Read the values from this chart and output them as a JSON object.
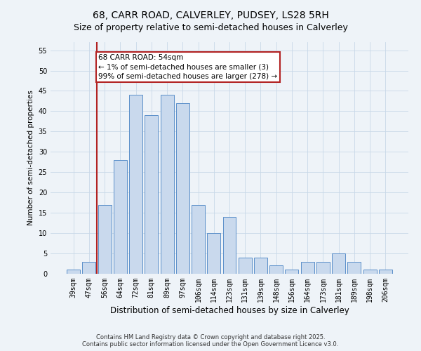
{
  "title": "68, CARR ROAD, CALVERLEY, PUDSEY, LS28 5RH",
  "subtitle": "Size of property relative to semi-detached houses in Calverley",
  "xlabel": "Distribution of semi-detached houses by size in Calverley",
  "ylabel": "Number of semi-detached properties",
  "categories": [
    "39sqm",
    "47sqm",
    "56sqm",
    "64sqm",
    "72sqm",
    "81sqm",
    "89sqm",
    "97sqm",
    "106sqm",
    "114sqm",
    "123sqm",
    "131sqm",
    "139sqm",
    "148sqm",
    "156sqm",
    "164sqm",
    "173sqm",
    "181sqm",
    "189sqm",
    "198sqm",
    "206sqm"
  ],
  "values": [
    1,
    3,
    17,
    28,
    44,
    39,
    44,
    42,
    17,
    10,
    14,
    4,
    4,
    2,
    1,
    3,
    3,
    5,
    3,
    1,
    1
  ],
  "bar_color": "#c9d9ed",
  "bar_edge_color": "#5b8fc9",
  "highlight_line_color": "#b22222",
  "annotation_text": "68 CARR ROAD: 54sqm\n← 1% of semi-detached houses are smaller (3)\n99% of semi-detached houses are larger (278) →",
  "annotation_box_color": "#ffffff",
  "annotation_box_edge_color": "#b22222",
  "ylim": [
    0,
    57
  ],
  "yticks": [
    0,
    5,
    10,
    15,
    20,
    25,
    30,
    35,
    40,
    45,
    50,
    55
  ],
  "grid_color": "#c8d8e8",
  "background_color": "#eef3f8",
  "footer_text": "Contains HM Land Registry data © Crown copyright and database right 2025.\nContains public sector information licensed under the Open Government Licence v3.0.",
  "title_fontsize": 10,
  "xlabel_fontsize": 8.5,
  "ylabel_fontsize": 7.5,
  "tick_fontsize": 7,
  "footer_fontsize": 6,
  "annotation_fontsize": 7.5
}
